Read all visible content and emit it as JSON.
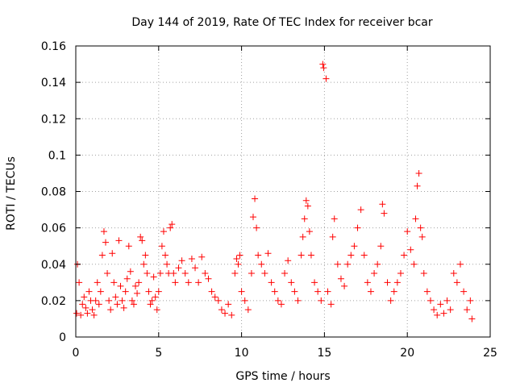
{
  "chart_data": {
    "type": "scatter",
    "title": "Day 144 of 2019, Rate Of TEC Index for receiver bcar",
    "xlabel": "GPS time / hours",
    "ylabel": "ROTI / TECUs",
    "xlim": [
      0,
      25
    ],
    "ylim": [
      0,
      0.16
    ],
    "xticks": [
      0,
      5,
      10,
      15,
      20,
      25
    ],
    "yticks": [
      0,
      0.02,
      0.04,
      0.06,
      0.08,
      0.1,
      0.12,
      0.14,
      0.16
    ],
    "xtick_labels": [
      "0",
      "5",
      "10",
      "15",
      "20",
      "25"
    ],
    "ytick_labels": [
      "0",
      "0.02",
      "0.04",
      "0.06",
      "0.08",
      "0.1",
      "0.12",
      "0.14",
      "0.16"
    ],
    "grid": true,
    "marker": "+",
    "color": "#ff0000",
    "series": [
      {
        "name": "ROTI",
        "points": [
          [
            0.05,
            0.013
          ],
          [
            0.1,
            0.04
          ],
          [
            0.2,
            0.03
          ],
          [
            0.3,
            0.012
          ],
          [
            0.4,
            0.018
          ],
          [
            0.5,
            0.022
          ],
          [
            0.6,
            0.016
          ],
          [
            0.7,
            0.013
          ],
          [
            0.8,
            0.025
          ],
          [
            0.9,
            0.02
          ],
          [
            1.0,
            0.015
          ],
          [
            1.1,
            0.012
          ],
          [
            1.2,
            0.02
          ],
          [
            1.3,
            0.03
          ],
          [
            1.4,
            0.018
          ],
          [
            1.5,
            0.025
          ],
          [
            1.6,
            0.045
          ],
          [
            1.7,
            0.058
          ],
          [
            1.8,
            0.052
          ],
          [
            1.9,
            0.035
          ],
          [
            2.0,
            0.02
          ],
          [
            2.1,
            0.015
          ],
          [
            2.2,
            0.046
          ],
          [
            2.3,
            0.03
          ],
          [
            2.4,
            0.022
          ],
          [
            2.5,
            0.018
          ],
          [
            2.6,
            0.053
          ],
          [
            2.7,
            0.028
          ],
          [
            2.8,
            0.02
          ],
          [
            2.9,
            0.016
          ],
          [
            3.0,
            0.025
          ],
          [
            3.1,
            0.032
          ],
          [
            3.2,
            0.05
          ],
          [
            3.3,
            0.036
          ],
          [
            3.4,
            0.02
          ],
          [
            3.5,
            0.018
          ],
          [
            3.6,
            0.028
          ],
          [
            3.7,
            0.024
          ],
          [
            3.8,
            0.03
          ],
          [
            3.9,
            0.055
          ],
          [
            4.0,
            0.053
          ],
          [
            4.1,
            0.04
          ],
          [
            4.2,
            0.045
          ],
          [
            4.3,
            0.035
          ],
          [
            4.4,
            0.025
          ],
          [
            4.5,
            0.018
          ],
          [
            4.6,
            0.02
          ],
          [
            4.7,
            0.033
          ],
          [
            4.8,
            0.022
          ],
          [
            4.9,
            0.015
          ],
          [
            5.0,
            0.025
          ],
          [
            5.1,
            0.035
          ],
          [
            5.2,
            0.05
          ],
          [
            5.3,
            0.058
          ],
          [
            5.4,
            0.045
          ],
          [
            5.5,
            0.04
          ],
          [
            5.6,
            0.035
          ],
          [
            5.7,
            0.06
          ],
          [
            5.8,
            0.062
          ],
          [
            5.9,
            0.035
          ],
          [
            6.0,
            0.03
          ],
          [
            6.2,
            0.038
          ],
          [
            6.4,
            0.042
          ],
          [
            6.6,
            0.035
          ],
          [
            6.8,
            0.03
          ],
          [
            7.0,
            0.043
          ],
          [
            7.2,
            0.038
          ],
          [
            7.4,
            0.03
          ],
          [
            7.6,
            0.044
          ],
          [
            7.8,
            0.035
          ],
          [
            8.0,
            0.032
          ],
          [
            8.2,
            0.025
          ],
          [
            8.4,
            0.022
          ],
          [
            8.6,
            0.02
          ],
          [
            8.8,
            0.015
          ],
          [
            9.0,
            0.013
          ],
          [
            9.2,
            0.018
          ],
          [
            9.4,
            0.012
          ],
          [
            9.6,
            0.035
          ],
          [
            9.7,
            0.043
          ],
          [
            9.8,
            0.04
          ],
          [
            9.9,
            0.045
          ],
          [
            10.0,
            0.025
          ],
          [
            10.2,
            0.02
          ],
          [
            10.4,
            0.015
          ],
          [
            10.6,
            0.035
          ],
          [
            10.7,
            0.066
          ],
          [
            10.8,
            0.076
          ],
          [
            10.9,
            0.06
          ],
          [
            11.0,
            0.045
          ],
          [
            11.2,
            0.04
          ],
          [
            11.4,
            0.035
          ],
          [
            11.6,
            0.046
          ],
          [
            11.8,
            0.03
          ],
          [
            12.0,
            0.025
          ],
          [
            12.2,
            0.02
          ],
          [
            12.4,
            0.018
          ],
          [
            12.6,
            0.035
          ],
          [
            12.8,
            0.042
          ],
          [
            13.0,
            0.03
          ],
          [
            13.2,
            0.025
          ],
          [
            13.4,
            0.02
          ],
          [
            13.6,
            0.045
          ],
          [
            13.7,
            0.055
          ],
          [
            13.8,
            0.065
          ],
          [
            13.9,
            0.075
          ],
          [
            14.0,
            0.072
          ],
          [
            14.1,
            0.058
          ],
          [
            14.2,
            0.045
          ],
          [
            14.4,
            0.03
          ],
          [
            14.6,
            0.025
          ],
          [
            14.8,
            0.02
          ],
          [
            14.9,
            0.15
          ],
          [
            14.95,
            0.148
          ],
          [
            15.1,
            0.142
          ],
          [
            15.2,
            0.025
          ],
          [
            15.4,
            0.018
          ],
          [
            15.5,
            0.055
          ],
          [
            15.6,
            0.065
          ],
          [
            15.8,
            0.04
          ],
          [
            16.0,
            0.032
          ],
          [
            16.2,
            0.028
          ],
          [
            16.4,
            0.04
          ],
          [
            16.6,
            0.045
          ],
          [
            16.8,
            0.05
          ],
          [
            17.0,
            0.06
          ],
          [
            17.2,
            0.07
          ],
          [
            17.4,
            0.045
          ],
          [
            17.6,
            0.03
          ],
          [
            17.8,
            0.025
          ],
          [
            18.0,
            0.035
          ],
          [
            18.2,
            0.04
          ],
          [
            18.4,
            0.05
          ],
          [
            18.5,
            0.073
          ],
          [
            18.6,
            0.068
          ],
          [
            18.8,
            0.03
          ],
          [
            19.0,
            0.02
          ],
          [
            19.2,
            0.025
          ],
          [
            19.4,
            0.03
          ],
          [
            19.6,
            0.035
          ],
          [
            19.8,
            0.045
          ],
          [
            20.0,
            0.058
          ],
          [
            20.2,
            0.048
          ],
          [
            20.4,
            0.04
          ],
          [
            20.5,
            0.065
          ],
          [
            20.6,
            0.083
          ],
          [
            20.7,
            0.09
          ],
          [
            20.8,
            0.06
          ],
          [
            20.9,
            0.055
          ],
          [
            21.0,
            0.035
          ],
          [
            21.2,
            0.025
          ],
          [
            21.4,
            0.02
          ],
          [
            21.6,
            0.015
          ],
          [
            21.8,
            0.012
          ],
          [
            22.0,
            0.018
          ],
          [
            22.2,
            0.013
          ],
          [
            22.4,
            0.02
          ],
          [
            22.6,
            0.015
          ],
          [
            22.8,
            0.035
          ],
          [
            23.0,
            0.03
          ],
          [
            23.2,
            0.04
          ],
          [
            23.4,
            0.025
          ],
          [
            23.6,
            0.015
          ],
          [
            23.8,
            0.02
          ],
          [
            23.9,
            0.01
          ]
        ]
      }
    ]
  }
}
